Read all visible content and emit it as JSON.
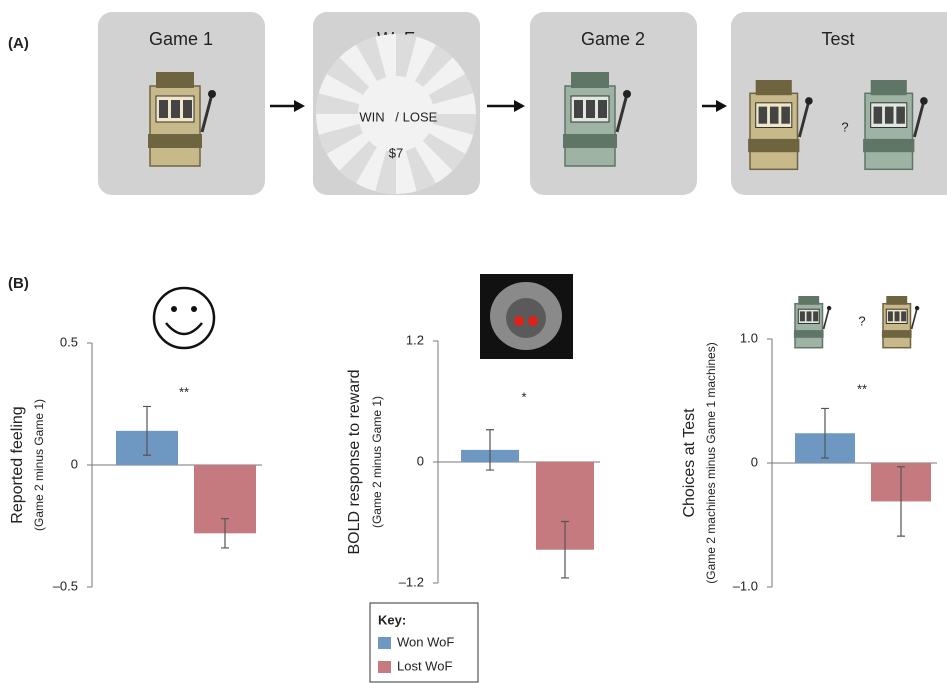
{
  "panel_a": {
    "label": "(A)",
    "steps": [
      "Game 1",
      "WoF",
      "Game 2",
      "Test"
    ],
    "win": "WIN",
    "slash": "/",
    "lose": "LOSE",
    "amount": "$7",
    "question": "?"
  },
  "panel_b": {
    "label": "(B)",
    "question": "?"
  },
  "chart_data": [
    {
      "type": "bar",
      "ylabel": "Reported feeling",
      "ylabel_note": "(Game 2 minus Game 1)",
      "annotation": "**",
      "legend_title": "Key:",
      "ylim": [
        -0.5,
        0.5
      ],
      "yticks": [
        0.5,
        0,
        {
          "value": -0.5,
          "label": "–0.5"
        }
      ],
      "series": [
        {
          "name": "Won WoF",
          "color": "#6e97c1",
          "values": [
            0.14
          ],
          "errors": [
            0.1
          ]
        },
        {
          "name": "Lost WoF",
          "color": "#c57a7f",
          "values": [
            -0.28
          ],
          "errors": [
            0.06
          ]
        }
      ]
    },
    {
      "type": "bar",
      "ylabel": "BOLD response to reward",
      "ylabel_note": "(Game 2 minus Game 1)",
      "annotation": "*",
      "ylim": [
        -1.2,
        1.2
      ],
      "yticks": [
        1.2,
        0,
        {
          "value": -1.2,
          "label": "–1.2"
        }
      ],
      "series": [
        {
          "color": "#6e97c1",
          "values": [
            0.12
          ],
          "errors": [
            0.2
          ]
        },
        {
          "color": "#c57a7f",
          "values": [
            -0.87
          ],
          "errors": [
            0.28
          ]
        }
      ]
    },
    {
      "type": "bar",
      "ylabel": "Choices at Test",
      "ylabel_note": "(Game 2 machines minus Game 1 machines)",
      "annotation": "**",
      "ylim": [
        -1,
        1
      ],
      "yticks": [
        {
          "value": 1,
          "label": "1.0"
        },
        0,
        {
          "value": -1,
          "label": "–1.0"
        }
      ],
      "series": [
        {
          "color": "#6e97c1",
          "values": [
            0.24
          ],
          "errors": [
            0.2
          ]
        },
        {
          "color": "#c57a7f",
          "values": [
            -0.31
          ],
          "errors": [
            0.28
          ]
        }
      ]
    }
  ]
}
